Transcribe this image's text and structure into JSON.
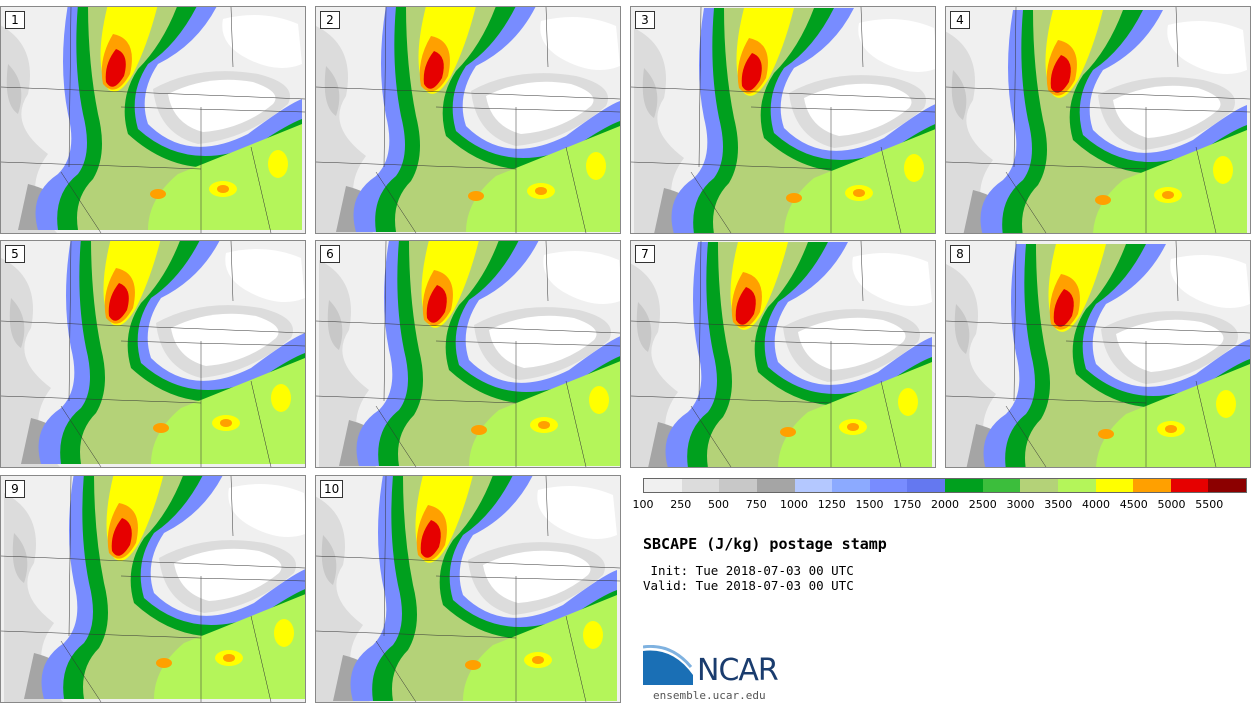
{
  "panels": [
    {
      "label": "1"
    },
    {
      "label": "2"
    },
    {
      "label": "3"
    },
    {
      "label": "4"
    },
    {
      "label": "5"
    },
    {
      "label": "6"
    },
    {
      "label": "7"
    },
    {
      "label": "8"
    },
    {
      "label": "9"
    },
    {
      "label": "10"
    }
  ],
  "colorbar": {
    "colors": [
      "#f0f0f0",
      "#dcdcdc",
      "#c8c8c8",
      "#a5a5a5",
      "#b4c8ff",
      "#8caaff",
      "#788cff",
      "#6478f0",
      "#00a01e",
      "#3cbe3c",
      "#b4d278",
      "#b4f55a",
      "#ffff00",
      "#ffa000",
      "#e60000",
      "#8c0000"
    ],
    "ticks": [
      "100",
      "250",
      "500",
      "750",
      "1000",
      "1250",
      "1500",
      "1750",
      "2000",
      "2500",
      "3000",
      "3500",
      "4000",
      "4500",
      "5000",
      "5500"
    ]
  },
  "title": "SBCAPE (J/kg) postage stamp",
  "init": " Init: Tue 2018-07-03 00 UTC",
  "valid": "Valid: Tue 2018-07-03 00 UTC",
  "logo": {
    "name": "NCAR",
    "url": "ensemble.ucar.edu"
  }
}
